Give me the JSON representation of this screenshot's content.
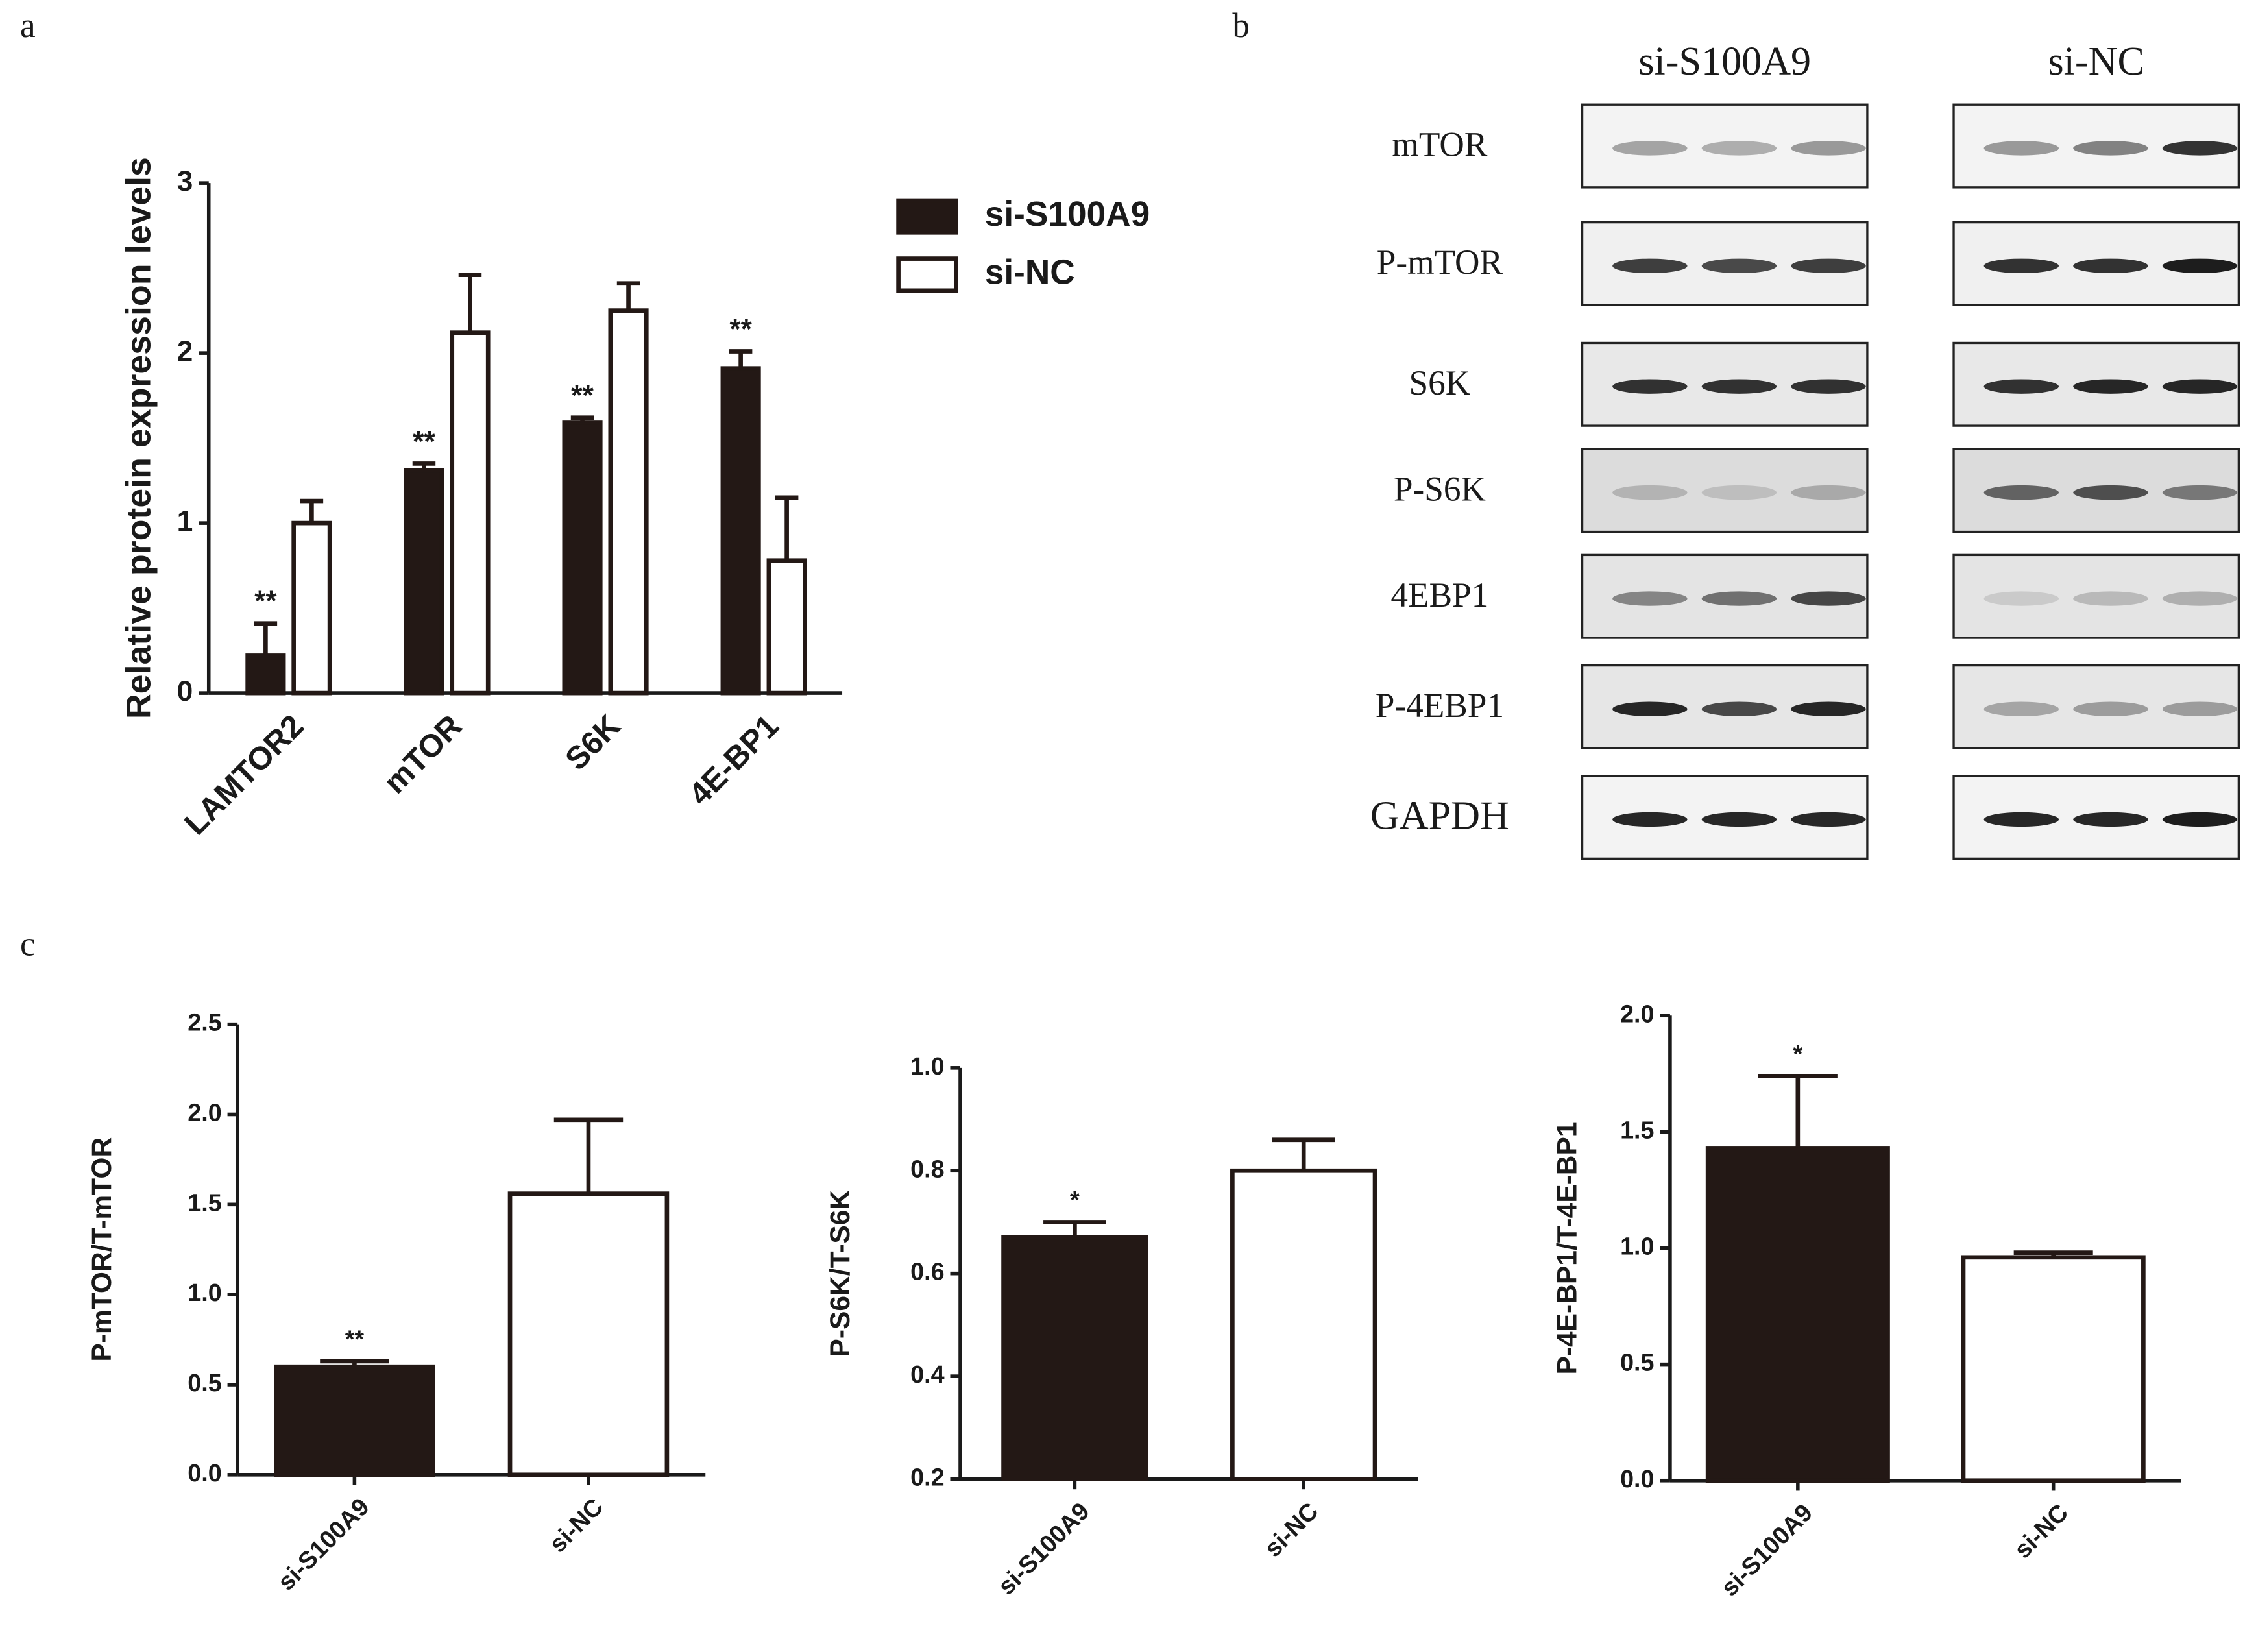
{
  "panel_labels": [
    "a",
    "b",
    "c"
  ],
  "chart_data": [
    {
      "type": "bar",
      "y_label": "Relative protein expression levels",
      "categories": [
        "LAMTOR2",
        "mTOR",
        "S6K",
        "4E-BP1"
      ],
      "series": [
        {
          "name": "si-S100A9",
          "color": "#231815",
          "values": [
            0.22,
            1.31,
            1.59,
            1.91
          ],
          "errors": [
            0.19,
            0.04,
            0.03,
            0.1
          ],
          "annotations": [
            "**",
            "**",
            "**",
            "**"
          ]
        },
        {
          "name": "si-NC",
          "color": "#ffffff",
          "values": [
            1.0,
            2.12,
            2.25,
            0.78
          ],
          "errors": [
            0.13,
            0.34,
            0.16,
            0.37
          ]
        }
      ],
      "ylim": [
        0,
        3
      ],
      "yticks": [
        0,
        1,
        2,
        3
      ],
      "legend": "right"
    },
    {
      "type": "bar",
      "y_label": "P-mTOR/T-mTOR",
      "categories": [
        "si-S100A9",
        "si-NC"
      ],
      "values": [
        0.6,
        1.56
      ],
      "errors": [
        0.03,
        0.41
      ],
      "colors": [
        "#231815",
        "#ffffff"
      ],
      "annotations": [
        "**",
        null
      ],
      "ylim": [
        0,
        2.5
      ],
      "yticks": [
        {
          "value": 0,
          "label": "0.0"
        },
        0.5,
        {
          "value": 1,
          "label": "1.0"
        },
        1.5,
        {
          "value": 2,
          "label": "2.0"
        },
        2.5
      ]
    },
    {
      "type": "bar",
      "y_label": "P-S6K/T-S6K",
      "categories": [
        "si-S100A9",
        "si-NC"
      ],
      "values": [
        0.67,
        0.8
      ],
      "errors": [
        0.03,
        0.06
      ],
      "colors": [
        "#231815",
        "#ffffff"
      ],
      "annotations": [
        "*",
        null
      ],
      "ylim": [
        0.2,
        1.0
      ],
      "yticks": [
        0.2,
        0.4,
        0.6,
        0.8,
        {
          "value": 1,
          "label": "1.0"
        }
      ]
    },
    {
      "type": "bar",
      "y_label": "P-4E-BP1/T-4E-BP1",
      "categories": [
        "si-S100A9",
        "si-NC"
      ],
      "values": [
        1.43,
        0.96
      ],
      "errors": [
        0.31,
        0.02
      ],
      "colors": [
        "#231815",
        "#ffffff"
      ],
      "annotations": [
        "*",
        null
      ],
      "ylim": [
        0,
        2.0
      ],
      "yticks": [
        {
          "value": 0,
          "label": "0.0"
        },
        0.5,
        {
          "value": 1,
          "label": "1.0"
        },
        1.5,
        {
          "value": 2,
          "label": "2.0"
        }
      ]
    }
  ],
  "blot": {
    "groups": [
      "si-S100A9",
      "si-NC"
    ],
    "rows": [
      "mTOR",
      "P-mTOR",
      "S6K",
      "P-S6K",
      "4EBP1",
      "P-4EBP1",
      "GAPDH"
    ]
  }
}
